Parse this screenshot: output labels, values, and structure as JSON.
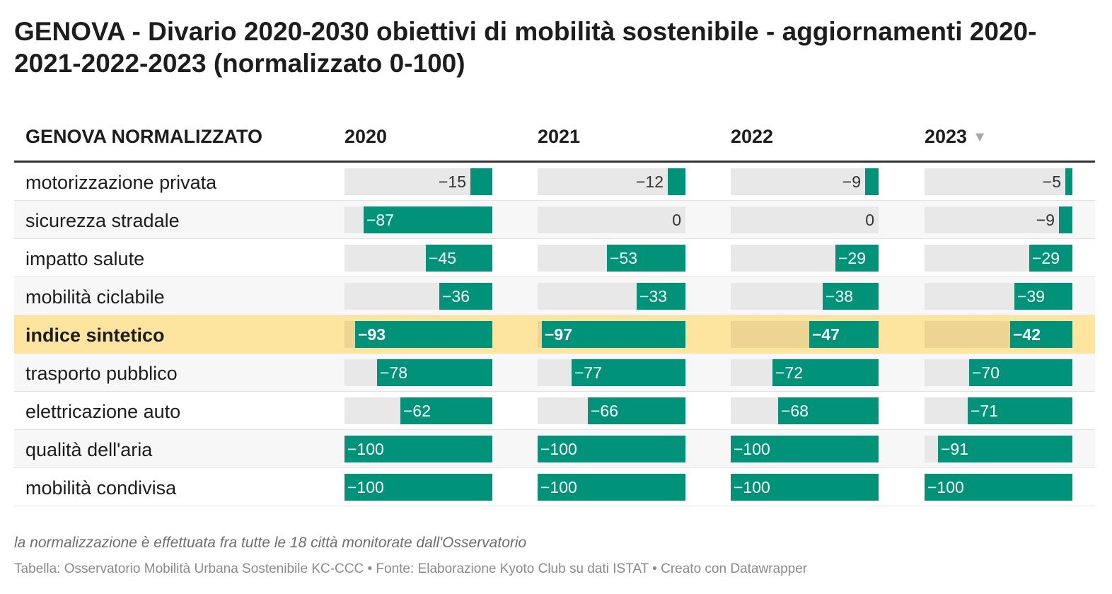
{
  "title": "GENOVA - Divario 2020-2030 obiettivi di mobilità sostenibile - aggiornamenti 2020-2021-2022-2023 (normalizzato 0-100)",
  "table": {
    "row_header": "GENOVA NORMALIZZATO",
    "sort_indicator": "▼"
  },
  "notes": "la normalizzazione è effettuata fra tutte le 18 città monitorate dall'Osservatorio",
  "source": "Tabella: Osservatorio Mobilità Urbana Sostenibile KC-CCC • Fonte: Elaborazione Kyoto Club su dati ISTAT • Creato con Datawrapper",
  "colors": {
    "bar": "#00937a",
    "track": "#e8e8e8",
    "highlight_row": "#fde5a0"
  },
  "chart_data": {
    "type": "table",
    "title": "GENOVA - Divario 2020-2030 obiettivi di mobilità sostenibile - aggiornamenti 2020-2021-2022-2023 (normalizzato 0-100)",
    "value_range": [
      -100,
      0
    ],
    "columns": [
      "2020",
      "2021",
      "2022",
      "2023"
    ],
    "sorted_column": "2023",
    "highlighted_row": "indice sintetico",
    "rows": [
      {
        "label": "motorizzazione privata",
        "values": [
          -15,
          -12,
          -9,
          -5
        ],
        "display": [
          "−15",
          "−12",
          "−9",
          "−5"
        ]
      },
      {
        "label": "sicurezza stradale",
        "values": [
          -87,
          0,
          0,
          -9
        ],
        "display": [
          "−87",
          "0",
          "0",
          "−9"
        ]
      },
      {
        "label": "impatto salute",
        "values": [
          -45,
          -53,
          -29,
          -29
        ],
        "display": [
          "−45",
          "−53",
          "−29",
          "−29"
        ]
      },
      {
        "label": "mobilità ciclabile",
        "values": [
          -36,
          -33,
          -38,
          -39
        ],
        "display": [
          "−36",
          "−33",
          "−38",
          "−39"
        ]
      },
      {
        "label": "indice sintetico",
        "values": [
          -93,
          -97,
          -47,
          -42
        ],
        "display": [
          "−93",
          "−97",
          "−47",
          "−42"
        ]
      },
      {
        "label": "trasporto pubblico",
        "values": [
          -78,
          -77,
          -72,
          -70
        ],
        "display": [
          "−78",
          "−77",
          "−72",
          "−70"
        ]
      },
      {
        "label": "elettricazione auto",
        "values": [
          -62,
          -66,
          -68,
          -71
        ],
        "display": [
          "−62",
          "−66",
          "−68",
          "−71"
        ]
      },
      {
        "label": "qualità dell'aria",
        "values": [
          -100,
          -100,
          -100,
          -91
        ],
        "display": [
          "−100",
          "−100",
          "−100",
          "−91"
        ]
      },
      {
        "label": "mobilità condivisa",
        "values": [
          -100,
          -100,
          -100,
          -100
        ],
        "display": [
          "−100",
          "−100",
          "−100",
          "−100"
        ]
      }
    ]
  }
}
